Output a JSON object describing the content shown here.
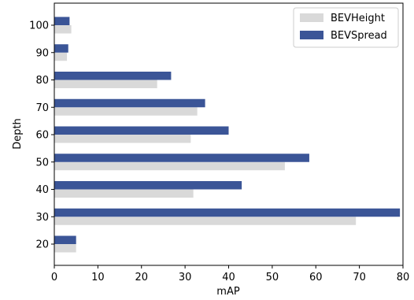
{
  "chart_data": {
    "type": "bar",
    "orientation": "horizontal",
    "categories": [
      "20",
      "30",
      "40",
      "50",
      "60",
      "70",
      "80",
      "90",
      "100"
    ],
    "series": [
      {
        "name": "BEVHeight",
        "color": "#d9d9d9",
        "values": [
          5.0,
          69.2,
          31.9,
          52.9,
          31.3,
          32.8,
          23.6,
          2.9,
          3.9
        ]
      },
      {
        "name": "BEVSpread",
        "color": "#3b5597",
        "values": [
          5.0,
          79.3,
          43.0,
          58.5,
          40.0,
          34.6,
          26.8,
          3.2,
          3.5
        ]
      }
    ],
    "xlabel": "mAP",
    "ylabel": "Depth",
    "xlim": [
      0,
      80
    ],
    "xticks": [
      "0",
      "10",
      "20",
      "30",
      "40",
      "50",
      "60",
      "70",
      "80"
    ],
    "grid": false,
    "legend": "top-right"
  }
}
